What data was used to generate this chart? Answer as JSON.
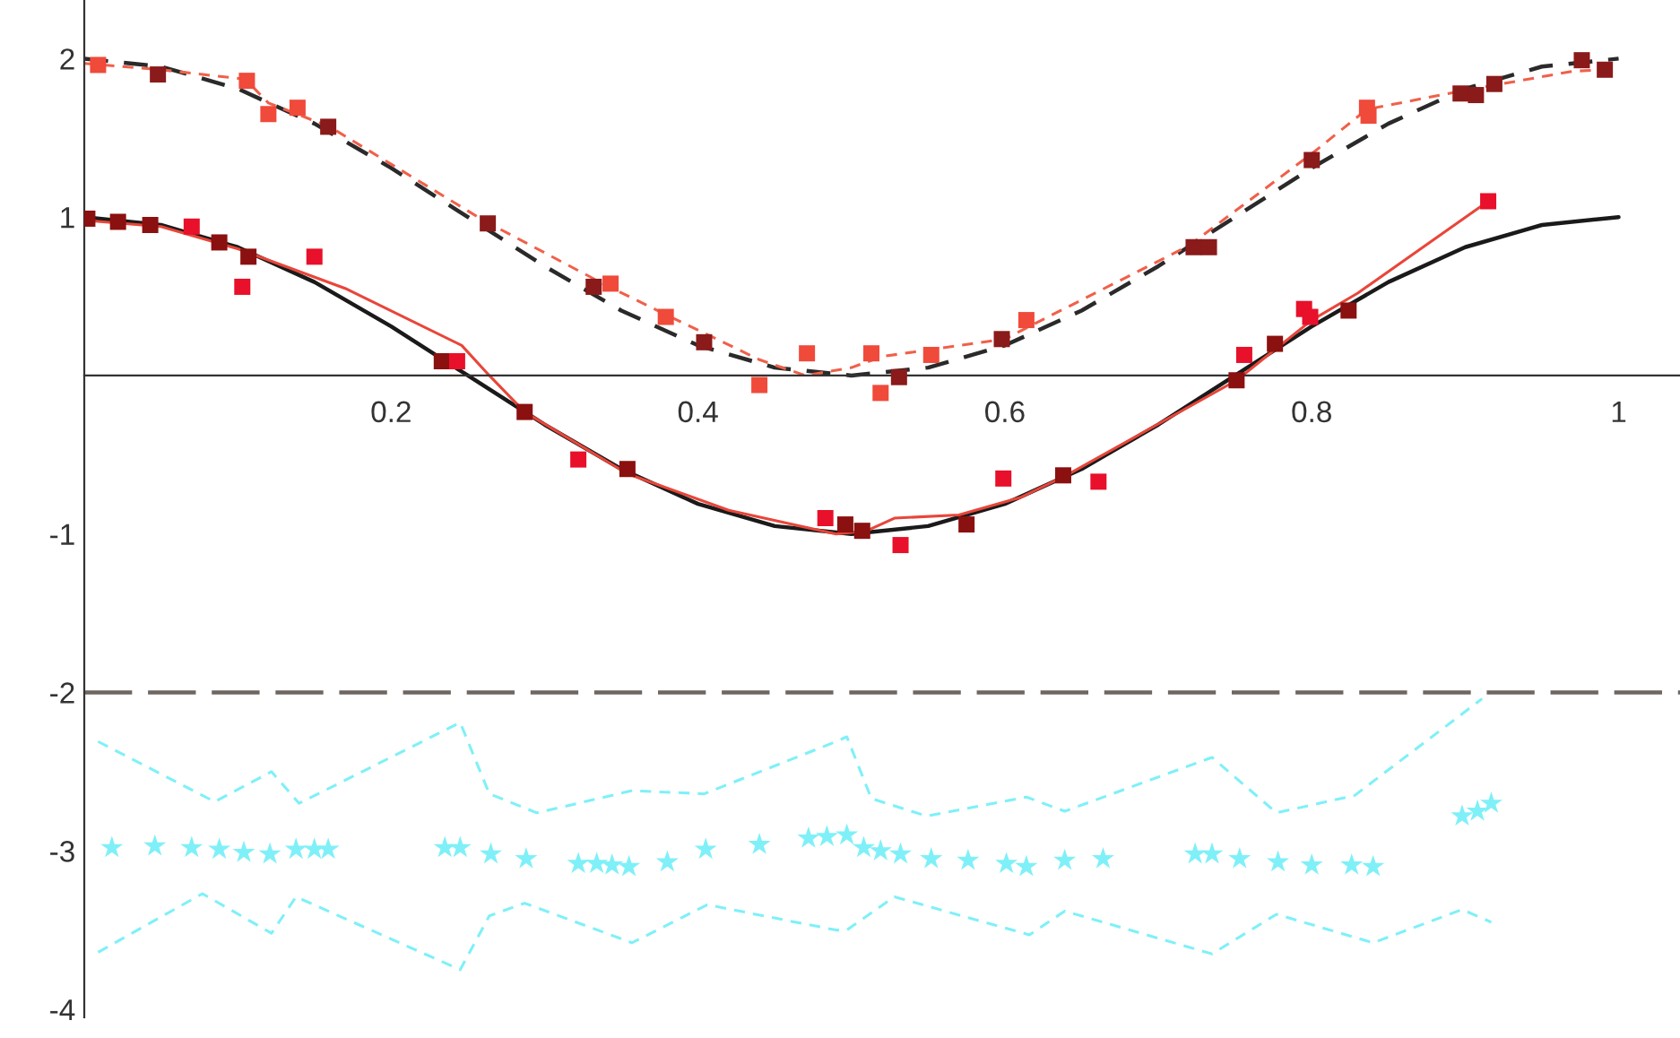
{
  "chart_data": {
    "type": "line",
    "xlim": [
      0,
      1.04
    ],
    "ylim": [
      -4.05,
      2.37
    ],
    "xticks": [
      0.2,
      0.4,
      0.6,
      0.8,
      1
    ],
    "yticks": [
      -4,
      -3,
      -2,
      -1,
      1,
      2
    ],
    "grid": false,
    "ref_lines": [
      {
        "axis": "y",
        "value": -2,
        "color": "#6e6660",
        "line_style": "dashed"
      }
    ],
    "series": [
      {
        "color": "#1a1a1a",
        "line_style": "solid",
        "marker": "none",
        "x": [
          0,
          0.05,
          0.1,
          0.15,
          0.2,
          0.25,
          0.3,
          0.35,
          0.4,
          0.45,
          0.5,
          0.55,
          0.6,
          0.65,
          0.7,
          0.75,
          0.8,
          0.85,
          0.9,
          0.95,
          1
        ],
        "values": [
          1,
          0.95,
          0.81,
          0.59,
          0.31,
          0,
          -0.31,
          -0.59,
          -0.81,
          -0.95,
          -1,
          -0.95,
          -0.81,
          -0.59,
          -0.31,
          0,
          0.31,
          0.59,
          0.81,
          0.95,
          1
        ]
      },
      {
        "color": "#2a2a2a",
        "line_style": "dashed",
        "marker": "none",
        "x": [
          0,
          0.05,
          0.1,
          0.15,
          0.2,
          0.25,
          0.3,
          0.35,
          0.4,
          0.45,
          0.5,
          0.55,
          0.6,
          0.65,
          0.7,
          0.75,
          0.8,
          0.85,
          0.9,
          0.95,
          1
        ],
        "values": [
          2,
          1.95,
          1.81,
          1.59,
          1.31,
          1,
          0.69,
          0.41,
          0.19,
          0.05,
          0,
          0.05,
          0.19,
          0.41,
          0.69,
          1,
          1.31,
          1.59,
          1.81,
          1.95,
          2
        ]
      },
      {
        "color": "#e8463a",
        "line_style": "solid",
        "marker": "none",
        "x": [
          0,
          0.05,
          0.1,
          0.17,
          0.246,
          0.264,
          0.287,
          0.354,
          0.42,
          0.49,
          0.51,
          0.528,
          0.57,
          0.61,
          0.64,
          0.751,
          0.8,
          0.83,
          0.915
        ],
        "values": [
          0.98,
          0.94,
          0.8,
          0.55,
          0.19,
          0.0,
          -0.23,
          -0.62,
          -0.85,
          -1.0,
          -0.98,
          -0.9,
          -0.88,
          -0.77,
          -0.63,
          -0.03,
          0.35,
          0.52,
          1.1
        ]
      },
      {
        "color": "#f0604a",
        "line_style": "dashed",
        "marker": "none",
        "x": [
          0,
          0.05,
          0.105,
          0.12,
          0.16,
          0.26,
          0.34,
          0.38,
          0.44,
          0.47,
          0.5,
          0.52,
          0.6,
          0.62,
          0.72,
          0.8,
          0.836,
          0.9,
          0.97,
          0.99
        ],
        "values": [
          1.97,
          1.93,
          1.87,
          1.72,
          1.57,
          0.98,
          0.57,
          0.38,
          0.1,
          0.0,
          0.05,
          0.12,
          0.23,
          0.33,
          0.82,
          1.4,
          1.68,
          1.8,
          1.92,
          1.93
        ]
      },
      {
        "type": "scatter",
        "color": "#8b1010",
        "marker": "square",
        "x": [
          0.002,
          0.022,
          0.043,
          0.088,
          0.107,
          0.233,
          0.287,
          0.354,
          0.496,
          0.507,
          0.575,
          0.638,
          0.751,
          0.776,
          0.824
        ],
        "values": [
          0.99,
          0.97,
          0.95,
          0.84,
          0.75,
          0.09,
          -0.23,
          -0.59,
          -0.94,
          -0.98,
          -0.94,
          -0.63,
          -0.03,
          0.2,
          0.41
        ]
      },
      {
        "type": "scatter",
        "color": "#e8102a",
        "marker": "square",
        "x": [
          0.07,
          0.103,
          0.15,
          0.243,
          0.322,
          0.483,
          0.532,
          0.599,
          0.661,
          0.756,
          0.795,
          0.799,
          0.915
        ],
        "values": [
          0.94,
          0.56,
          0.75,
          0.09,
          -0.53,
          -0.9,
          -1.07,
          -0.65,
          -0.67,
          0.13,
          0.42,
          0.37,
          1.1
        ]
      },
      {
        "type": "scatter",
        "color": "#8b1a1a",
        "marker": "square",
        "x": [
          0.048,
          0.159,
          0.263,
          0.332,
          0.404,
          0.531,
          0.598,
          0.723,
          0.733,
          0.8,
          0.897,
          0.907,
          0.919,
          0.976,
          0.991
        ],
        "values": [
          1.9,
          1.57,
          0.96,
          0.56,
          0.21,
          -0.01,
          0.23,
          0.81,
          0.81,
          1.36,
          1.78,
          1.77,
          1.84,
          1.99,
          1.93
        ]
      },
      {
        "type": "scatter",
        "color": "#f04a3a",
        "marker": "square",
        "x": [
          0.009,
          0.106,
          0.12,
          0.139,
          0.343,
          0.379,
          0.44,
          0.471,
          0.513,
          0.519,
          0.552,
          0.614,
          0.836,
          0.837
        ],
        "values": [
          1.96,
          1.86,
          1.65,
          1.69,
          0.58,
          0.37,
          -0.06,
          0.14,
          0.14,
          -0.11,
          0.13,
          0.35,
          1.69,
          1.64
        ]
      },
      {
        "type": "scatter",
        "color": "#7ff0f8",
        "marker": "star",
        "x": [
          0.018,
          0.046,
          0.07,
          0.088,
          0.104,
          0.121,
          0.138,
          0.15,
          0.159,
          0.235,
          0.245,
          0.265,
          0.288,
          0.322,
          0.334,
          0.344,
          0.355,
          0.38,
          0.405,
          0.44,
          0.472,
          0.484,
          0.497,
          0.508,
          0.519,
          0.532,
          0.552,
          0.576,
          0.601,
          0.614,
          0.639,
          0.664,
          0.724,
          0.735,
          0.753,
          0.778,
          0.8,
          0.826,
          0.84,
          0.898,
          0.908,
          0.917
        ],
        "values": [
          -2.98,
          -2.97,
          -2.98,
          -2.99,
          -3.01,
          -3.02,
          -2.99,
          -2.99,
          -2.99,
          -2.98,
          -2.98,
          -3.02,
          -3.05,
          -3.08,
          -3.08,
          -3.09,
          -3.1,
          -3.07,
          -2.99,
          -2.96,
          -2.92,
          -2.91,
          -2.9,
          -2.98,
          -3.0,
          -3.02,
          -3.05,
          -3.06,
          -3.08,
          -3.1,
          -3.06,
          -3.05,
          -3.02,
          -3.02,
          -3.05,
          -3.07,
          -3.09,
          -3.09,
          -3.1,
          -2.78,
          -2.75,
          -2.7
        ]
      },
      {
        "type": "line",
        "color": "#7ff0f8",
        "line_style": "dashed",
        "marker": "none",
        "x": [
          0.009,
          0.085,
          0.122,
          0.14,
          0.245,
          0.264,
          0.295,
          0.357,
          0.404,
          0.49,
          0.497,
          0.513,
          0.549,
          0.614,
          0.639,
          0.735,
          0.777,
          0.828,
          0.911
        ],
        "values": [
          -2.31,
          -2.69,
          -2.5,
          -2.7,
          -2.19,
          -2.64,
          -2.76,
          -2.62,
          -2.64,
          -2.31,
          -2.28,
          -2.67,
          -2.78,
          -2.66,
          -2.75,
          -2.41,
          -2.76,
          -2.65,
          -2.04
        ]
      },
      {
        "type": "line",
        "color": "#7ff0f8",
        "line_style": "dashed",
        "marker": "none",
        "x": [
          0.009,
          0.077,
          0.122,
          0.138,
          0.245,
          0.264,
          0.287,
          0.357,
          0.406,
          0.49,
          0.497,
          0.528,
          0.616,
          0.639,
          0.735,
          0.777,
          0.84,
          0.898,
          0.917
        ],
        "values": [
          -3.64,
          -3.27,
          -3.52,
          -3.29,
          -3.75,
          -3.41,
          -3.33,
          -3.58,
          -3.34,
          -3.5,
          -3.5,
          -3.29,
          -3.53,
          -3.38,
          -3.65,
          -3.4,
          -3.58,
          -3.37,
          -3.45
        ]
      }
    ]
  }
}
